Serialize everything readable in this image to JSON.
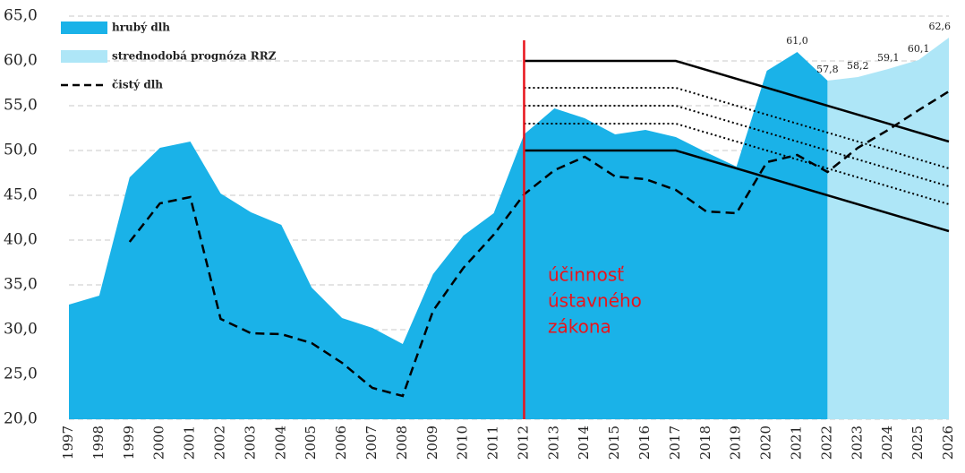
{
  "chart_data": {
    "type": "area",
    "categories": [
      "1997",
      "1998",
      "1999",
      "2000",
      "2001",
      "2002",
      "2003",
      "2004",
      "2005",
      "2006",
      "2007",
      "2008",
      "2009",
      "2010",
      "2011",
      "2012",
      "2013",
      "2014",
      "2015",
      "2016",
      "2017",
      "2018",
      "2019",
      "2020",
      "2021",
      "2022",
      "2023",
      "2024",
      "2025",
      "2026"
    ],
    "series": [
      {
        "name": "hrubý dlh",
        "kind": "area",
        "color": "#1ab2e8",
        "values": [
          32.8,
          33.8,
          47.0,
          50.3,
          51.0,
          45.2,
          43.1,
          41.7,
          34.7,
          31.3,
          30.2,
          28.4,
          36.2,
          40.5,
          43.0,
          51.8,
          54.7,
          53.6,
          51.8,
          52.3,
          51.5,
          49.8,
          48.2,
          58.9,
          61.0,
          57.8,
          null,
          null,
          null,
          null
        ],
        "value_labels": [
          null,
          null,
          null,
          null,
          null,
          null,
          null,
          null,
          null,
          null,
          null,
          null,
          null,
          null,
          null,
          null,
          null,
          null,
          null,
          null,
          null,
          null,
          null,
          null,
          "61,0",
          null,
          null,
          null,
          null,
          null
        ]
      },
      {
        "name": "strednodobá prognóza RRZ",
        "kind": "area",
        "color": "#aee6f7",
        "values": [
          null,
          null,
          null,
          null,
          null,
          null,
          null,
          null,
          null,
          null,
          null,
          null,
          null,
          null,
          null,
          null,
          null,
          null,
          null,
          null,
          null,
          null,
          null,
          null,
          null,
          57.8,
          58.2,
          59.1,
          60.1,
          62.6
        ],
        "value_labels": [
          null,
          null,
          null,
          null,
          null,
          null,
          null,
          null,
          null,
          null,
          null,
          null,
          null,
          null,
          null,
          null,
          null,
          null,
          null,
          null,
          null,
          null,
          null,
          null,
          null,
          "57,8",
          "58,2",
          "59,1",
          "60,1",
          "62,6"
        ]
      },
      {
        "name": "čistý dlh",
        "kind": "dashed-line",
        "color": "#000000",
        "values": [
          null,
          null,
          39.8,
          44.1,
          44.8,
          31.2,
          29.6,
          29.5,
          28.5,
          26.3,
          23.5,
          22.6,
          32.1,
          36.9,
          40.6,
          45.1,
          47.8,
          49.3,
          47.1,
          46.8,
          45.6,
          43.2,
          43.0,
          48.7,
          49.5,
          47.6,
          50.3,
          52.3,
          54.5,
          56.6
        ]
      }
    ],
    "brackets": {
      "x": [
        "2012",
        "2017",
        "2026"
      ],
      "color": "#000000",
      "lines": [
        {
          "dash": "solid",
          "values": [
            60,
            60,
            51
          ]
        },
        {
          "dash": "dotted",
          "values": [
            57,
            57,
            48
          ]
        },
        {
          "dash": "dotted",
          "values": [
            55,
            55,
            46
          ]
        },
        {
          "dash": "dotted",
          "values": [
            53,
            53,
            44
          ]
        },
        {
          "dash": "solid",
          "values": [
            50,
            50,
            41
          ]
        }
      ]
    },
    "vertical_line": {
      "x": "2012",
      "color": "#e8141c"
    },
    "annotation": [
      "účinnosť",
      "ústavného",
      "zákona"
    ],
    "ylim": [
      20,
      65
    ],
    "yticks": [
      {
        "value": 20,
        "label": "20,0"
      },
      {
        "value": 25,
        "label": "25,0"
      },
      {
        "value": 30,
        "label": "30,0"
      },
      {
        "value": 35,
        "label": "35,0"
      },
      {
        "value": 40,
        "label": "40,0"
      },
      {
        "value": 45,
        "label": "45,0"
      },
      {
        "value": 50,
        "label": "50,0"
      },
      {
        "value": 55,
        "label": "55,0"
      },
      {
        "value": 60,
        "label": "60,0"
      },
      {
        "value": 65,
        "label": "65,0"
      }
    ],
    "grid": true,
    "legend": "top-left"
  }
}
